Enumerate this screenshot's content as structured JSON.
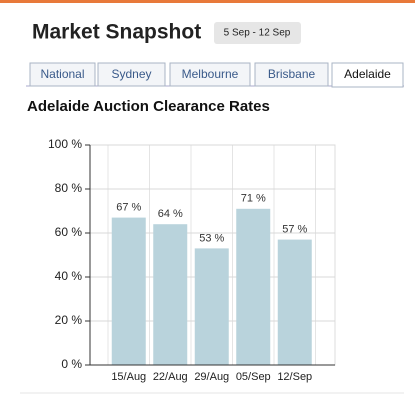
{
  "header": {
    "title": "Market Snapshot",
    "date_range": "5 Sep - 12 Sep"
  },
  "tabs": [
    "National",
    "Sydney",
    "Melbourne",
    "Brisbane",
    "Adelaide"
  ],
  "active_tab": 4,
  "chart_data": {
    "type": "bar",
    "title": "Adelaide Auction Clearance Rates",
    "categories": [
      "15/Aug",
      "22/Aug",
      "29/Aug",
      "05/Sep",
      "12/Sep"
    ],
    "values": [
      67,
      64,
      53,
      71,
      57
    ],
    "value_labels": [
      "67 %",
      "64 %",
      "53 %",
      "71 %",
      "57 %"
    ],
    "color": "#b9d3dc",
    "ylim": [
      0,
      100
    ],
    "yticks": [
      {
        "value": 0,
        "label": "0 %"
      },
      {
        "value": 20,
        "label": "20 %"
      },
      {
        "value": 40,
        "label": "40 %"
      },
      {
        "value": 60,
        "label": "60 %"
      },
      {
        "value": 80,
        "label": "80 %"
      },
      {
        "value": 100,
        "label": "100 %"
      }
    ],
    "grid": true
  }
}
